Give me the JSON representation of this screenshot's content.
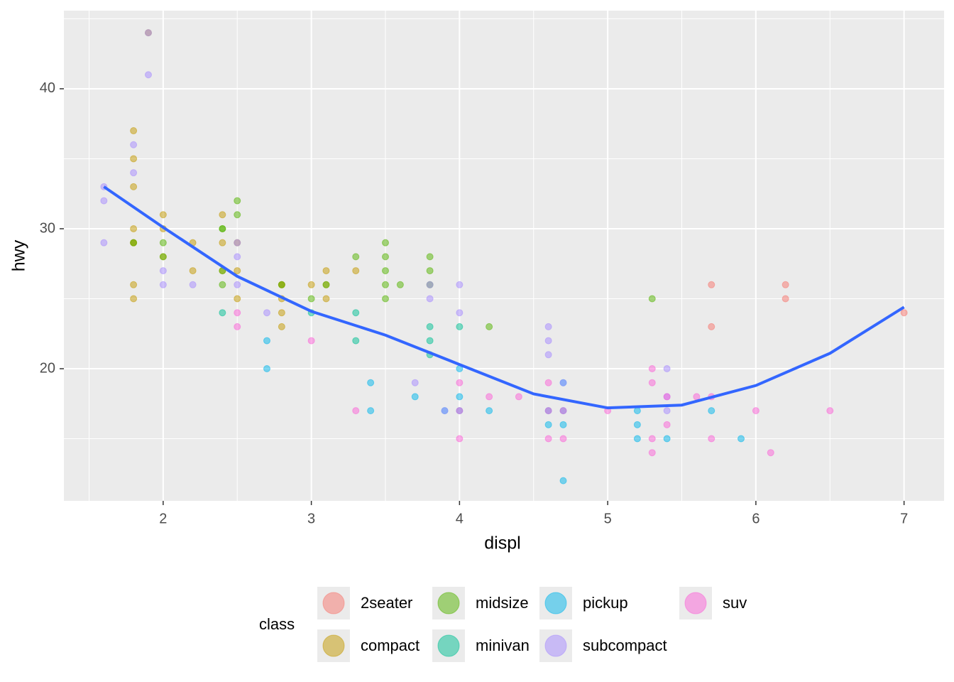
{
  "chart_data": {
    "type": "scatter",
    "x_label": "displ",
    "y_label": "hwy",
    "legend_title": "class",
    "legend_position": "bottom",
    "grid": true,
    "panel_color": "#ebebeb",
    "alpha": 0.5,
    "xlim": [
      1.33,
      7.27
    ],
    "ylim": [
      10.56,
      45.58
    ],
    "xticks": [
      2,
      3,
      4,
      5,
      6,
      7
    ],
    "yticks": [
      20,
      30,
      40
    ],
    "xminorticks": [
      1.5,
      2.5,
      3.5,
      4.5,
      5.5,
      6.5
    ],
    "yminorticks": [
      15,
      25,
      35,
      45
    ],
    "series": [
      {
        "name": "2seater",
        "color": "#F8766D",
        "x": [
          5.7,
          5.7,
          6.2,
          6.2,
          7
        ],
        "values": [
          26,
          23,
          26,
          25,
          24
        ]
      },
      {
        "name": "compact",
        "color": "#C49A00",
        "x": [
          1.8,
          1.8,
          2,
          2,
          2.8,
          2.8,
          3.1,
          1.8,
          1.8,
          2,
          2.8,
          3.1,
          2.2,
          2.2,
          2.4,
          3,
          3.3,
          1.8,
          1.8,
          1.8,
          2.5,
          2.5,
          2.5,
          2.8,
          2.8,
          2.4,
          2.4,
          3.1,
          1.9,
          1.8
        ],
        "values": [
          29,
          29,
          31,
          30,
          26,
          26,
          27,
          26,
          25,
          28,
          25,
          25,
          27,
          29,
          31,
          26,
          27,
          33,
          35,
          37,
          29,
          27,
          25,
          24,
          23,
          29,
          27,
          26,
          44,
          30
        ]
      },
      {
        "name": "midsize",
        "color": "#53B400",
        "x": [
          2.4,
          2.4,
          2.5,
          2.5,
          3.3,
          3.5,
          3.5,
          3.5,
          3.5,
          3.5,
          3.6,
          3.8,
          3.8,
          3.8,
          4.2,
          2.4,
          3.1,
          5.3,
          3,
          2.8,
          2,
          2,
          1.8,
          2.4
        ],
        "values": [
          30,
          27,
          32,
          31,
          28,
          29,
          28,
          27,
          26,
          25,
          26,
          28,
          27,
          26,
          23,
          26,
          26,
          25,
          25,
          26,
          29,
          28,
          29,
          30
        ]
      },
      {
        "name": "minivan",
        "color": "#00C094",
        "x": [
          2.4,
          3,
          3.3,
          3.3,
          3.8,
          3.8,
          3.8,
          4
        ],
        "values": [
          24,
          24,
          24,
          22,
          23,
          22,
          21,
          23
        ]
      },
      {
        "name": "pickup",
        "color": "#00B6EB",
        "x": [
          2.7,
          2.7,
          3.4,
          3.4,
          3.7,
          4,
          4,
          4.2,
          4.6,
          4.6,
          4.7,
          4.7,
          5.2,
          5.2,
          5.2,
          5.4,
          5.7,
          5.9,
          4.7,
          4.7,
          3.9,
          4
        ],
        "values": [
          22,
          20,
          19,
          17,
          18,
          18,
          20,
          17,
          17,
          16,
          16,
          17,
          17,
          15,
          16,
          15,
          17,
          15,
          12,
          19,
          17,
          17
        ]
      },
      {
        "name": "subcompact",
        "color": "#A58AFF",
        "x": [
          1.6,
          1.6,
          1.6,
          1.8,
          1.8,
          1.9,
          1.9,
          2,
          2,
          2.2,
          2.5,
          2.5,
          2.5,
          2.7,
          3.8,
          3.8,
          4,
          4,
          3.7,
          3.9,
          4.6,
          4.6,
          4.6,
          5.4,
          5.4,
          4.7,
          5.4
        ],
        "values": [
          33,
          32,
          29,
          34,
          36,
          41,
          44,
          26,
          27,
          26,
          28,
          26,
          29,
          24,
          26,
          25,
          26,
          24,
          19,
          17,
          23,
          22,
          21,
          20,
          18,
          19,
          17
        ]
      },
      {
        "name": "suv",
        "color": "#FB61D7",
        "x": [
          2.5,
          2.5,
          3,
          3.3,
          4,
          4,
          4,
          4.2,
          4.4,
          4.6,
          4.6,
          4.7,
          4.7,
          5,
          5.3,
          5.3,
          5.3,
          5.3,
          5.4,
          5.4,
          5.6,
          5.7,
          5.7,
          6,
          6.1,
          6.5,
          4.6
        ],
        "values": [
          24,
          23,
          22,
          17,
          19,
          17,
          15,
          18,
          18,
          19,
          15,
          17,
          15,
          17,
          20,
          19,
          15,
          14,
          18,
          16,
          18,
          18,
          15,
          17,
          14,
          17,
          17
        ]
      }
    ],
    "smooth": {
      "color": "#3366FF",
      "x": [
        1.6,
        2,
        2.5,
        3,
        3.5,
        4,
        4.5,
        5,
        5.5,
        6,
        6.5,
        7
      ],
      "values": [
        33.0,
        30.1,
        26.6,
        24.1,
        22.4,
        20.3,
        18.2,
        17.2,
        17.4,
        18.8,
        21.1,
        24.4
      ]
    }
  }
}
